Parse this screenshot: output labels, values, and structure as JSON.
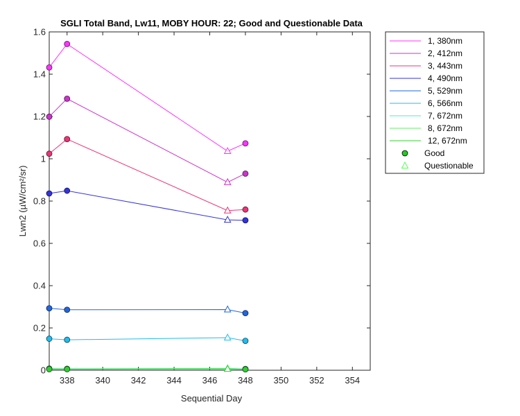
{
  "chart_data": {
    "type": "line",
    "title": "SGLI Total Band, Lw11, MOBY HOUR: 22;  Good and Questionable Data",
    "xlabel": "Sequential Day",
    "ylabel": "Lwn2 (µW/cm²/sr)",
    "xlim": [
      337,
      355
    ],
    "ylim": [
      0,
      1.6
    ],
    "xticks": [
      338,
      340,
      342,
      344,
      346,
      348,
      350,
      352,
      354
    ],
    "yticks": [
      0,
      0.2,
      0.4,
      0.6,
      0.8,
      1,
      1.2,
      1.4,
      1.6
    ],
    "grid": false,
    "legend_position": "outside-right",
    "x": [
      337,
      338,
      347,
      348
    ],
    "quality": [
      "Good",
      "Good",
      "Questionable",
      "Good"
    ],
    "series": [
      {
        "name": "1, 380nm",
        "color": "#ff33ff",
        "values": [
          1.432,
          1.543,
          1.036,
          1.073
        ]
      },
      {
        "name": "2, 412nm",
        "color": "#cc33cc",
        "values": [
          1.199,
          1.284,
          0.889,
          0.93
        ]
      },
      {
        "name": "3, 443nm",
        "color": "#ee3377",
        "values": [
          1.024,
          1.093,
          0.755,
          0.76
        ]
      },
      {
        "name": "4, 490nm",
        "color": "#3333dd",
        "values": [
          0.836,
          0.849,
          0.711,
          0.709
        ]
      },
      {
        "name": "5, 529nm",
        "color": "#2266dd",
        "values": [
          0.293,
          0.286,
          0.287,
          0.27
        ]
      },
      {
        "name": "6, 566nm",
        "color": "#22bbee",
        "values": [
          0.149,
          0.144,
          0.154,
          0.139
        ]
      },
      {
        "name": "7, 672nm",
        "color": "#44eecc",
        "values": [
          0.008,
          0.007,
          0.009,
          0.006
        ]
      },
      {
        "name": "8, 672nm",
        "color": "#66ee66",
        "values": [
          0.007,
          0.006,
          0.008,
          0.005
        ]
      },
      {
        "name": "12, 672nm",
        "color": "#33cc33",
        "values": [
          0.005,
          0.005,
          0.006,
          0.004
        ]
      }
    ],
    "marker_legend": [
      {
        "label": "Good",
        "marker": "circle",
        "color": "#22cc22"
      },
      {
        "label": "Questionable",
        "marker": "triangle",
        "color": "#55ff55"
      }
    ]
  }
}
